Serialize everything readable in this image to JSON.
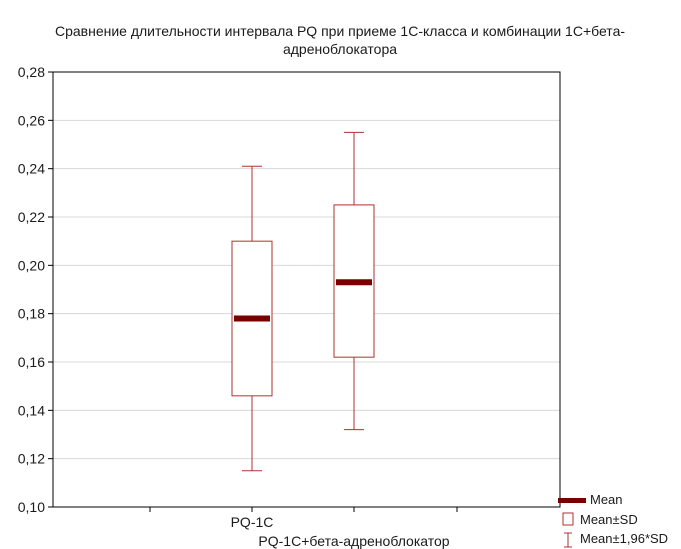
{
  "chart_data": {
    "type": "box",
    "title": "Сравнение длительности интервала PQ при приеме 1С-класса и комбинации 1С+бета-адреноблокатора",
    "title_lines": [
      "Сравнение длительности интервала PQ при приеме 1С-класса и комбинации 1С+бета-",
      "адреноблокатора"
    ],
    "ylim": [
      0.1,
      0.28
    ],
    "yticks": [
      0.1,
      0.12,
      0.14,
      0.16,
      0.18,
      0.2,
      0.22,
      0.24,
      0.26,
      0.28
    ],
    "ytick_labels": [
      "0,10",
      "0,12",
      "0,14",
      "0,16",
      "0,18",
      "0,20",
      "0,22",
      "0,24",
      "0,26",
      "0,28"
    ],
    "grid": true,
    "categories": [
      "PQ-1C",
      "PQ-1C+бета-адреноблокатор"
    ],
    "series": [
      {
        "category": "PQ-1C",
        "mean": 0.178,
        "sd_low": 0.146,
        "sd_high": 0.21,
        "whisker_low": 0.115,
        "whisker_high": 0.241
      },
      {
        "category": "PQ-1C+бета-адреноблокатор",
        "mean": 0.193,
        "sd_low": 0.162,
        "sd_high": 0.225,
        "whisker_low": 0.132,
        "whisker_high": 0.255
      }
    ],
    "legend": {
      "placement": "bottom-right",
      "items": [
        "Mean",
        "Mean±SD",
        "Mean±1,96*SD"
      ]
    },
    "colors": {
      "mean": "#7a0000",
      "box": "#b03030",
      "whisker": "#b03030",
      "grid": "#d8d8d8",
      "axis": "#000000"
    }
  }
}
